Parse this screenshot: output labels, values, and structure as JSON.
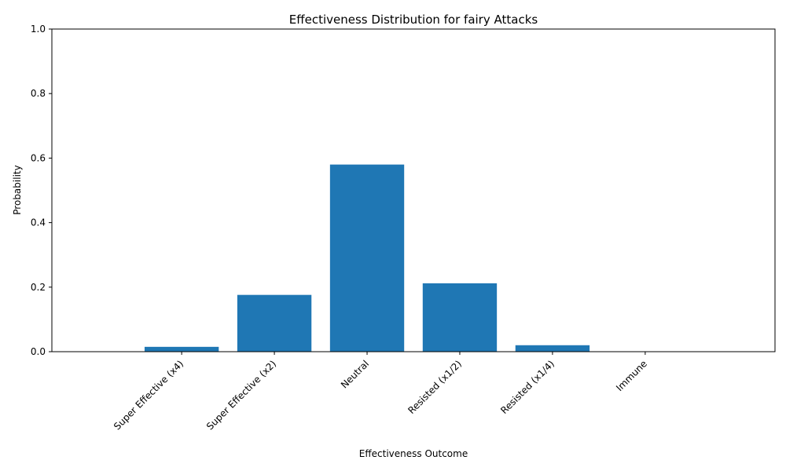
{
  "chart_data": {
    "type": "bar",
    "title": "Effectiveness Distribution for fairy Attacks",
    "xlabel": "Effectiveness Outcome",
    "ylabel": "Probability",
    "categories": [
      "Super Effective (x4)",
      "Super Effective (x2)",
      "Neutral",
      "Resisted (x1/2)",
      "Resisted (x1/4)",
      "Immune"
    ],
    "values": [
      0.015,
      0.176,
      0.58,
      0.212,
      0.02,
      0.0
    ],
    "ylim": [
      0,
      1.0
    ],
    "yticks": [
      0.0,
      0.2,
      0.4,
      0.6,
      0.8,
      1.0
    ],
    "ytick_labels": [
      "0.0",
      "0.2",
      "0.4",
      "0.6",
      "0.8",
      "1.0"
    ],
    "bar_color": "#1f77b4",
    "grid": false,
    "legend": "none"
  }
}
